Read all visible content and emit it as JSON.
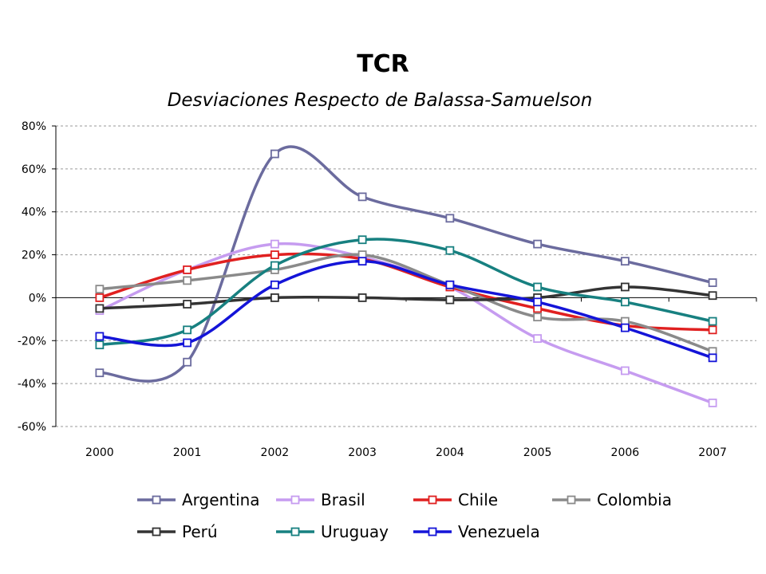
{
  "chart_data": {
    "type": "line",
    "title": "TCR",
    "subtitle": "Desviaciones Respecto de Balassa-Samuelson",
    "xlabel": "",
    "ylabel": "",
    "categories": [
      "2000",
      "2001",
      "2002",
      "2003",
      "2004",
      "2005",
      "2006",
      "2007"
    ],
    "y_ticks": [
      "80%",
      "60%",
      "40%",
      "20%",
      "0%",
      "-20%",
      "-40%",
      "-60%"
    ],
    "ylim": [
      -60,
      80
    ],
    "y_unit": "%",
    "grid": true,
    "smooth": true,
    "legend_position": "bottom",
    "series": [
      {
        "name": "Argentina",
        "color": "#6b6b9e",
        "values": [
          -35,
          -30,
          67,
          47,
          37,
          25,
          17,
          7
        ]
      },
      {
        "name": "Brasil",
        "color": "#c69cf0",
        "values": [
          -6,
          13,
          25,
          19,
          5,
          -19,
          -34,
          -49
        ]
      },
      {
        "name": "Chile",
        "color": "#e02020",
        "values": [
          0,
          13,
          20,
          18,
          5,
          -5,
          -13,
          -15
        ]
      },
      {
        "name": "Colombia",
        "color": "#8a8a8a",
        "values": [
          4,
          8,
          13,
          20,
          6,
          -9,
          -11,
          -25
        ]
      },
      {
        "name": "Perú",
        "color": "#333333",
        "values": [
          -5,
          -3,
          0,
          0,
          -1,
          0,
          5,
          1
        ]
      },
      {
        "name": "Uruguay",
        "color": "#178080",
        "values": [
          -22,
          -15,
          15,
          27,
          22,
          5,
          -2,
          -11
        ]
      },
      {
        "name": "Venezuela",
        "color": "#1414d8",
        "values": [
          -18,
          -21,
          6,
          17,
          6,
          -2,
          -14,
          -28
        ]
      }
    ]
  }
}
